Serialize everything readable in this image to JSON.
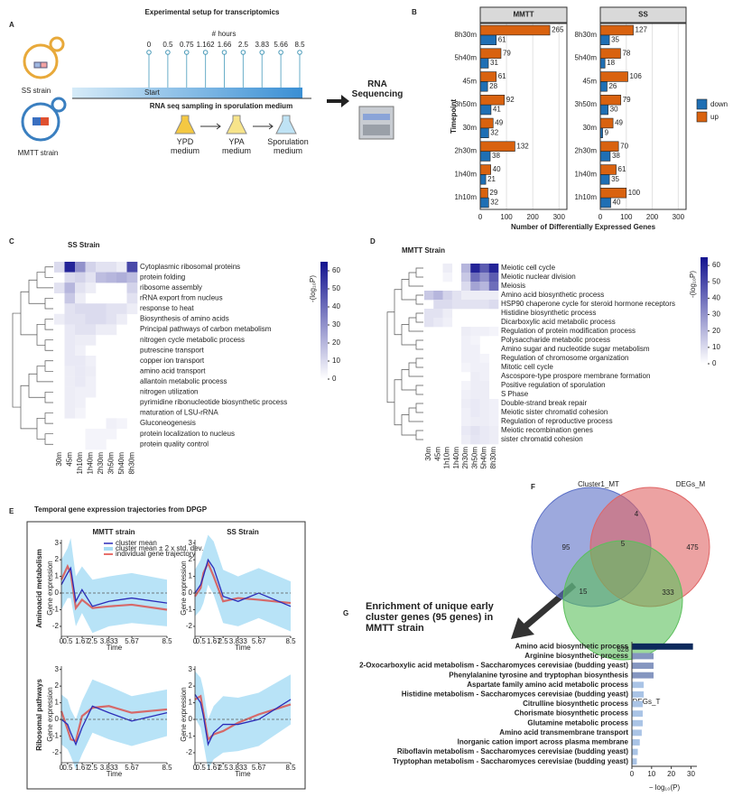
{
  "panel_labels": [
    "A",
    "B",
    "C",
    "D",
    "E",
    "F",
    "G"
  ],
  "setup": {
    "title": "Experimental setup for transcriptomics",
    "hours_label": "# hours",
    "timepoints": [
      0,
      0.5,
      0.75,
      1.162,
      1.66,
      2.5,
      3.83,
      5.66,
      8.5
    ],
    "start": "Start",
    "sampling": "RNA seq sampling in sporulation medium",
    "strains": [
      "SS strain",
      "MMTT strain"
    ],
    "media": [
      "YPD medium",
      "YPA medium",
      "Sporulation medium"
    ],
    "sequencing": "RNA Sequencing"
  },
  "trajectories": {
    "title": "Temporal gene expression trajectories from DPGP",
    "col_labels": [
      "MMTT strain",
      "SS Strain"
    ],
    "row_labels": [
      "Aminoacid metabolism",
      "Ribosomal pathways"
    ]
  },
  "chart_data": [
    {
      "type": "bar",
      "orientation": "horizontal",
      "facet_title": "MMTT",
      "categories": [
        "8h30m",
        "5h40m",
        "45m",
        "3h50m",
        "30m",
        "2h30m",
        "1h40m",
        "1h10m"
      ],
      "series": [
        {
          "name": "down",
          "color": "#1f6fb4",
          "values": [
            61,
            31,
            28,
            41,
            32,
            38,
            21,
            32
          ]
        },
        {
          "name": "up",
          "color": "#d9620f",
          "values": [
            265,
            79,
            61,
            92,
            49,
            132,
            40,
            29
          ]
        }
      ],
      "xlim": [
        0,
        330
      ],
      "xticks": [
        0,
        100,
        200,
        300
      ],
      "grid": true,
      "xlabel": "Number of Differentially Expressed Genes",
      "ylabel": "Timepoint",
      "legend": "right"
    },
    {
      "type": "bar",
      "orientation": "horizontal",
      "facet_title": "SS",
      "categories": [
        "8h30m",
        "5h40m",
        "45m",
        "3h50m",
        "30m",
        "2h30m",
        "1h40m",
        "1h10m"
      ],
      "series": [
        {
          "color": "#1f6fb4",
          "values": [
            35,
            18,
            26,
            30,
            9,
            38,
            35,
            40
          ]
        },
        {
          "color": "#d9620f",
          "values": [
            127,
            78,
            106,
            79,
            49,
            70,
            61,
            100
          ]
        }
      ],
      "xlim": [
        0,
        330
      ],
      "xticks": [
        0,
        100,
        200,
        300
      ],
      "grid": true
    },
    {
      "type": "heatmap",
      "title": "SS Strain",
      "columns": [
        "30m",
        "45m",
        "1h10m",
        "1h40m",
        "2h30m",
        "3h50m",
        "5h40m",
        "8h30m"
      ],
      "rows": [
        "Cytoplasmic ribosomal proteins",
        "protein folding",
        "ribosome assembly",
        "rRNA export from nucleus",
        "response to heat",
        "Biosynthesis of amino acids",
        "Principal pathways of carbon metabolism",
        "nitrogen cycle metabolic process",
        "putrescine transport",
        "copper ion transport",
        "amino acid transport",
        "allantoin metabolic process",
        "nitrogen utilization",
        "pyrimidine ribonucleotide biosynthetic process",
        "maturation of LSU-rRNA",
        "Gluconeogenesis",
        "protein localization to nucleus",
        "protein quality control"
      ],
      "values": [
        [
          10,
          60,
          30,
          12,
          8,
          8,
          5,
          50
        ],
        [
          null,
          10,
          12,
          8,
          18,
          20,
          22,
          18
        ],
        [
          8,
          20,
          8,
          5,
          null,
          null,
          null,
          12
        ],
        [
          null,
          15,
          5,
          null,
          null,
          null,
          null,
          8
        ],
        [
          null,
          8,
          10,
          10,
          10,
          8,
          8,
          5
        ],
        [
          5,
          8,
          8,
          10,
          10,
          8,
          5,
          null
        ],
        [
          null,
          6,
          8,
          8,
          5,
          5,
          null,
          null
        ],
        [
          null,
          6,
          5,
          5,
          null,
          null,
          null,
          null
        ],
        [
          null,
          6,
          4,
          null,
          null,
          null,
          null,
          null
        ],
        [
          null,
          6,
          6,
          4,
          null,
          null,
          null,
          null
        ],
        [
          null,
          5,
          6,
          5,
          null,
          null,
          null,
          null
        ],
        [
          null,
          5,
          6,
          4,
          null,
          null,
          null,
          null
        ],
        [
          null,
          5,
          4,
          4,
          null,
          null,
          null,
          null
        ],
        [
          null,
          5,
          4,
          null,
          null,
          null,
          null,
          null
        ],
        [
          null,
          5,
          3,
          null,
          null,
          null,
          null,
          null
        ],
        [
          null,
          null,
          null,
          null,
          null,
          4,
          3,
          null
        ],
        [
          null,
          null,
          null,
          3,
          3,
          3,
          null,
          null
        ],
        [
          null,
          null,
          null,
          3,
          3,
          null,
          null,
          null
        ]
      ],
      "clim": [
        0,
        65
      ],
      "cticks": [
        0,
        10,
        20,
        30,
        40,
        50,
        60
      ],
      "colorbar_label": "-(log₁₀P)",
      "color_range": [
        "#ffffff",
        "#12128f"
      ]
    },
    {
      "type": "heatmap",
      "title": "MMTT Strain",
      "columns": [
        "30m",
        "45m",
        "1h10m",
        "1h40m",
        "2h30m",
        "3h50m",
        "5h40m",
        "8h30m"
      ],
      "rows": [
        "Meiotic cell cycle",
        "Meiotic nuclear division",
        "Meiosis",
        "Amino acid biosynthetic process",
        "HSP90 chaperone cycle for steroid hormone receptors",
        "Histidine biosynthetic process",
        "Dicarboxylic acid metabolic process",
        "Regulation of protein modification process",
        "Polysaccharide metabolic process",
        "Amino sugar and nucleotide sugar metabolism",
        "Regulation of chromosome organization",
        "Mitotic cell cycle",
        "Ascospore-type prospore membrane formation",
        "Positive regulation of sporulation",
        "S Phase",
        "Double-strand break repair",
        "Meiotic sister chromatid cohesion",
        "Regulation of reproductive process",
        "Meiotic recombination genes",
        "sister chromatid cohesion"
      ],
      "values": [
        [
          null,
          null,
          5,
          null,
          20,
          60,
          45,
          60
        ],
        [
          null,
          null,
          3,
          null,
          15,
          40,
          30,
          45
        ],
        [
          null,
          null,
          null,
          null,
          10,
          25,
          20,
          40
        ],
        [
          15,
          20,
          12,
          8,
          5,
          5,
          5,
          5
        ],
        [
          null,
          10,
          10,
          8,
          8,
          8,
          8,
          10
        ],
        [
          8,
          8,
          5,
          null,
          null,
          null,
          null,
          null
        ],
        [
          8,
          6,
          4,
          null,
          null,
          null,
          null,
          null
        ],
        [
          null,
          null,
          null,
          null,
          5,
          4,
          4,
          3
        ],
        [
          null,
          null,
          null,
          null,
          4,
          3,
          null,
          null
        ],
        [
          null,
          null,
          null,
          null,
          4,
          4,
          null,
          null
        ],
        [
          null,
          null,
          null,
          null,
          4,
          4,
          3,
          null
        ],
        [
          null,
          null,
          null,
          null,
          3,
          4,
          4,
          null
        ],
        [
          null,
          null,
          null,
          null,
          null,
          5,
          4,
          null
        ],
        [
          null,
          null,
          null,
          null,
          3,
          5,
          5,
          null
        ],
        [
          null,
          null,
          null,
          null,
          4,
          5,
          5,
          null
        ],
        [
          null,
          null,
          null,
          null,
          5,
          6,
          5,
          4
        ],
        [
          null,
          null,
          null,
          null,
          4,
          6,
          5,
          4
        ],
        [
          null,
          null,
          null,
          null,
          4,
          5,
          5,
          4
        ],
        [
          null,
          null,
          null,
          null,
          6,
          8,
          6,
          5
        ],
        [
          null,
          null,
          null,
          null,
          5,
          7,
          6,
          5
        ]
      ],
      "clim": [
        0,
        65
      ],
      "cticks": [
        0,
        10,
        20,
        30,
        40,
        50,
        60
      ],
      "colorbar_label": "-(log₁₀P)",
      "color_range": [
        "#ffffff",
        "#12128f"
      ]
    },
    {
      "type": "line",
      "x": [
        0,
        0.5,
        0.75,
        1.162,
        1.66,
        2.5,
        3.83,
        5.66,
        8.5
      ],
      "xlim": [
        0,
        8.5
      ],
      "xticks": [
        0,
        0.5,
        1.67,
        2.5,
        3.833,
        5.67,
        8.5
      ],
      "ylim": [
        -2.6,
        3.2
      ],
      "yticks": [
        -2,
        -1,
        0,
        1,
        2,
        3
      ],
      "xlabel": "Time",
      "ylabel": "Gene expression",
      "legend": "upper right",
      "series": [
        {
          "name": "cluster mean",
          "color": "#2b2bb8",
          "values": [
            0.5,
            1.2,
            1.5,
            -0.5,
            0.2,
            -0.8,
            -0.5,
            -0.3,
            -0.6
          ]
        },
        {
          "name": "cluster mean ± 2 x std. dev.",
          "color": "#a6dcf5",
          "values": [
            1.5,
            1.5,
            1.8,
            1.5,
            1.4,
            1.6,
            1.5,
            1.5,
            1.4
          ]
        },
        {
          "name": "individual gene trajectory",
          "color": "#e0403a",
          "values": [
            0.8,
            1.6,
            1.2,
            -0.9,
            -0.4,
            -0.9,
            -0.8,
            -0.7,
            -1.0
          ]
        }
      ]
    },
    {
      "type": "line",
      "x": [
        0,
        0.5,
        0.75,
        1.162,
        1.66,
        2.5,
        3.83,
        5.66,
        8.5
      ],
      "xlim": [
        0,
        8.5
      ],
      "xticks": [
        0,
        0.5,
        1.67,
        2.5,
        3.833,
        5.67,
        8.5
      ],
      "ylim": [
        -2.6,
        3.2
      ],
      "yticks": [
        -2,
        -1,
        0,
        1,
        2,
        3
      ],
      "xlabel": "Time",
      "ylabel": "Gene expression",
      "series": [
        {
          "color": "#2b2bb8",
          "values": [
            0,
            0.5,
            1.0,
            2.0,
            1.5,
            -0.2,
            -0.5,
            0,
            -0.8
          ]
        },
        {
          "color": "#a6dcf5",
          "values": [
            1.4,
            1.5,
            1.6,
            1.5,
            1.6,
            1.6,
            1.5,
            1.5,
            1.5
          ]
        },
        {
          "color": "#e0403a",
          "values": [
            -0.2,
            0.3,
            1.2,
            1.8,
            1.0,
            -0.5,
            -0.3,
            -0.4,
            -0.6
          ]
        }
      ]
    },
    {
      "type": "line",
      "x": [
        0,
        0.5,
        0.75,
        1.162,
        1.66,
        2.5,
        3.83,
        5.66,
        8.5
      ],
      "xlim": [
        0,
        8.5
      ],
      "xticks": [
        0,
        0.5,
        1.67,
        2.5,
        3.833,
        5.67,
        8.5
      ],
      "ylim": [
        -2.6,
        3.2
      ],
      "yticks": [
        -2,
        -1,
        0,
        1,
        2,
        3
      ],
      "xlabel": "Time",
      "ylabel": "Gene expression",
      "series": [
        {
          "color": "#2b2bb8",
          "values": [
            0,
            -0.3,
            -0.8,
            -1.5,
            -0.5,
            0.8,
            0.4,
            -0.1,
            0.4
          ]
        },
        {
          "color": "#a6dcf5",
          "values": [
            1.5,
            1.5,
            1.4,
            1.5,
            1.6,
            1.6,
            1.6,
            1.5,
            1.4
          ]
        },
        {
          "color": "#e0403a",
          "values": [
            0.5,
            -0.6,
            -1.2,
            -1.3,
            0.2,
            0.7,
            0.8,
            0.4,
            0.6
          ]
        }
      ]
    },
    {
      "type": "line",
      "x": [
        0,
        0.5,
        0.75,
        1.162,
        1.66,
        2.5,
        3.83,
        5.66,
        8.5
      ],
      "xlim": [
        0,
        8.5
      ],
      "xticks": [
        0,
        0.5,
        1.67,
        2.5,
        3.833,
        5.67,
        8.5
      ],
      "ylim": [
        -2.6,
        3.2
      ],
      "yticks": [
        -2,
        -1,
        0,
        1,
        2,
        3
      ],
      "xlabel": "Time",
      "ylabel": "Gene expression",
      "series": [
        {
          "color": "#2b2bb8",
          "values": [
            1.5,
            1.0,
            0.2,
            -1.5,
            -0.8,
            -0.3,
            -0.3,
            0,
            1.2
          ]
        },
        {
          "color": "#a6dcf5",
          "values": [
            1.4,
            1.5,
            1.6,
            1.5,
            1.6,
            1.7,
            1.6,
            1.6,
            1.5
          ]
        },
        {
          "color": "#e0403a",
          "values": [
            1.2,
            1.4,
            0.4,
            -1.2,
            -0.9,
            -0.7,
            -0.2,
            0.3,
            0.9
          ]
        }
      ]
    },
    {
      "type": "venn",
      "sets": [
        {
          "name": "Cluster1_MT",
          "color": "#5b6fc6"
        },
        {
          "name": "DEGs_M",
          "color": "#e06464"
        },
        {
          "name": "DEGs_T",
          "color": "#5cbf5c"
        }
      ],
      "values": [
        95,
        4,
        475,
        5,
        15,
        333,
        628
      ]
    },
    {
      "type": "bar",
      "orientation": "horizontal",
      "title": "Enrichment of unique early cluster genes (95 genes) in MMTT strain",
      "categories": [
        "Amino acid biosynthetic process",
        "Arginine biosynthetic process",
        "2-Oxocarboxylic acid metabolism - Saccharomyces cerevisiae (budding yeast)",
        "Phenylalanine tyrosine and tryptophan biosynthesis",
        "Aspartate family amino acid metabolic process",
        "Histidine metabolism - Saccharomyces cerevisiae (budding yeast)",
        "Citrulline biosynthetic process",
        "Chorismate biosynthetic process",
        "Glutamine metabolic process",
        "Amino acid transmembrane transport",
        "Inorganic cation import across plasma membrane",
        "Riboflavin metabolism - Saccharomyces cerevisiae (budding yeast)",
        "Tryptophan metabolism - Saccharomyces cerevisiae (budding yeast)"
      ],
      "values": [
        31,
        11,
        11,
        11,
        6,
        6,
        5.5,
        5.5,
        5.5,
        5,
        4,
        3,
        2.5
      ],
      "colors": [
        "#0d2a5c",
        "#8596c0",
        "#8596c0",
        "#8596c0",
        "#aac4e6",
        "#aac4e6",
        "#aac4e6",
        "#aac4e6",
        "#aac4e6",
        "#aac4e6",
        "#aac4e6",
        "#aac4e6",
        "#aac4e6"
      ],
      "xlim": [
        0,
        33
      ],
      "xticks": [
        0,
        10,
        20,
        30
      ],
      "grid": false,
      "xlabel": "− log₁₀(P)"
    }
  ]
}
